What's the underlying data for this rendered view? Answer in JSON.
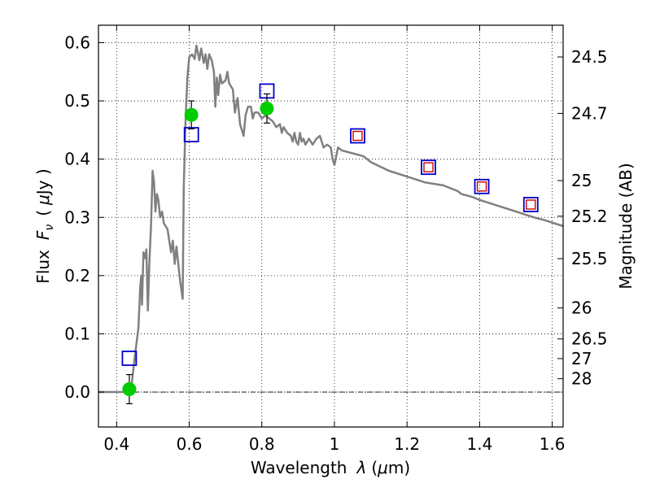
{
  "chart_data": {
    "type": "scatter",
    "xlabel_text": "Wavelength",
    "xlabel_symbol": "λ",
    "xlabel_unit_open": "(",
    "xlabel_unit_mu": "μ",
    "xlabel_unit_rest": "m)",
    "ylabel_text": "Flux",
    "ylabel_symbol": "F",
    "ylabel_symbol_sub": "ν",
    "ylabel_unit_open": "(",
    "ylabel_unit_mu": "μ",
    "ylabel_unit_rest": "Jy )",
    "right_ylabel": "Magnitude (AB)",
    "xlim": [
      0.35,
      1.63
    ],
    "ylim": [
      -0.06,
      0.63
    ],
    "x_ticks": [
      {
        "v": 0.4,
        "label": "0.4"
      },
      {
        "v": 0.6,
        "label": "0.6"
      },
      {
        "v": 0.8,
        "label": "0.8"
      },
      {
        "v": 1.0,
        "label": "1"
      },
      {
        "v": 1.2,
        "label": "1.2"
      },
      {
        "v": 1.4,
        "label": "1.4"
      },
      {
        "v": 1.6,
        "label": "1.6"
      }
    ],
    "y_ticks": [
      {
        "v": 0.0,
        "label": "0.0"
      },
      {
        "v": 0.1,
        "label": "0.1"
      },
      {
        "v": 0.2,
        "label": "0.2"
      },
      {
        "v": 0.3,
        "label": "0.3"
      },
      {
        "v": 0.4,
        "label": "0.4"
      },
      {
        "v": 0.5,
        "label": "0.5"
      },
      {
        "v": 0.6,
        "label": "0.6"
      }
    ],
    "right_ticks": [
      {
        "flux": 0.5755,
        "label": "24.5"
      },
      {
        "flux": 0.4786,
        "label": "24.7"
      },
      {
        "flux": 0.3631,
        "label": "25"
      },
      {
        "flux": 0.302,
        "label": "25.2"
      },
      {
        "flux": 0.2291,
        "label": "25.5"
      },
      {
        "flux": 0.1445,
        "label": "26"
      },
      {
        "flux": 0.0912,
        "label": "26.5"
      },
      {
        "flux": 0.0575,
        "label": "27"
      },
      {
        "flux": 0.0229,
        "label": "28"
      }
    ],
    "grid": true,
    "zero_line": true,
    "colors": {
      "model": "#808080",
      "observed": "#00cc00",
      "synthetic_outer": "#0000cc",
      "synthetic_inner": "#cc0000",
      "errorbar": "#000000"
    },
    "model_sed": [
      [
        0.35,
        0.0
      ],
      [
        0.4,
        0.0
      ],
      [
        0.42,
        0.0
      ],
      [
        0.43,
        0.0
      ],
      [
        0.44,
        0.005
      ],
      [
        0.45,
        0.06
      ],
      [
        0.46,
        0.11
      ],
      [
        0.465,
        0.18
      ],
      [
        0.468,
        0.2
      ],
      [
        0.47,
        0.15
      ],
      [
        0.474,
        0.24
      ],
      [
        0.478,
        0.23
      ],
      [
        0.482,
        0.245
      ],
      [
        0.486,
        0.14
      ],
      [
        0.49,
        0.22
      ],
      [
        0.495,
        0.29
      ],
      [
        0.499,
        0.38
      ],
      [
        0.503,
        0.36
      ],
      [
        0.507,
        0.31
      ],
      [
        0.511,
        0.34
      ],
      [
        0.515,
        0.33
      ],
      [
        0.52,
        0.3
      ],
      [
        0.525,
        0.31
      ],
      [
        0.53,
        0.29
      ],
      [
        0.54,
        0.28
      ],
      [
        0.55,
        0.24
      ],
      [
        0.555,
        0.26
      ],
      [
        0.56,
        0.22
      ],
      [
        0.565,
        0.25
      ],
      [
        0.57,
        0.22
      ],
      [
        0.575,
        0.19
      ],
      [
        0.582,
        0.16
      ],
      [
        0.585,
        0.35
      ],
      [
        0.59,
        0.47
      ],
      [
        0.595,
        0.54
      ],
      [
        0.6,
        0.575
      ],
      [
        0.608,
        0.58
      ],
      [
        0.615,
        0.572
      ],
      [
        0.62,
        0.595
      ],
      [
        0.628,
        0.57
      ],
      [
        0.633,
        0.59
      ],
      [
        0.64,
        0.565
      ],
      [
        0.645,
        0.58
      ],
      [
        0.65,
        0.555
      ],
      [
        0.655,
        0.58
      ],
      [
        0.662,
        0.57
      ],
      [
        0.668,
        0.55
      ],
      [
        0.672,
        0.49
      ],
      [
        0.676,
        0.54
      ],
      [
        0.68,
        0.51
      ],
      [
        0.685,
        0.545
      ],
      [
        0.69,
        0.53
      ],
      [
        0.7,
        0.535
      ],
      [
        0.705,
        0.55
      ],
      [
        0.71,
        0.53
      ],
      [
        0.72,
        0.52
      ],
      [
        0.726,
        0.48
      ],
      [
        0.733,
        0.505
      ],
      [
        0.74,
        0.46
      ],
      [
        0.745,
        0.45
      ],
      [
        0.75,
        0.44
      ],
      [
        0.755,
        0.475
      ],
      [
        0.762,
        0.49
      ],
      [
        0.77,
        0.49
      ],
      [
        0.775,
        0.47
      ],
      [
        0.78,
        0.48
      ],
      [
        0.79,
        0.48
      ],
      [
        0.8,
        0.47
      ],
      [
        0.81,
        0.475
      ],
      [
        0.82,
        0.47
      ],
      [
        0.83,
        0.465
      ],
      [
        0.84,
        0.455
      ],
      [
        0.85,
        0.46
      ],
      [
        0.855,
        0.445
      ],
      [
        0.86,
        0.455
      ],
      [
        0.87,
        0.445
      ],
      [
        0.88,
        0.44
      ],
      [
        0.885,
        0.43
      ],
      [
        0.89,
        0.445
      ],
      [
        0.895,
        0.43
      ],
      [
        0.9,
        0.425
      ],
      [
        0.905,
        0.445
      ],
      [
        0.91,
        0.43
      ],
      [
        0.915,
        0.435
      ],
      [
        0.92,
        0.425
      ],
      [
        0.93,
        0.435
      ],
      [
        0.94,
        0.425
      ],
      [
        0.95,
        0.435
      ],
      [
        0.96,
        0.44
      ],
      [
        0.97,
        0.42
      ],
      [
        0.98,
        0.425
      ],
      [
        0.99,
        0.42
      ],
      [
        0.995,
        0.4
      ],
      [
        1.0,
        0.39
      ],
      [
        1.01,
        0.42
      ],
      [
        1.02,
        0.415
      ],
      [
        1.05,
        0.41
      ],
      [
        1.08,
        0.405
      ],
      [
        1.1,
        0.395
      ],
      [
        1.15,
        0.38
      ],
      [
        1.2,
        0.37
      ],
      [
        1.25,
        0.36
      ],
      [
        1.3,
        0.355
      ],
      [
        1.34,
        0.345
      ],
      [
        1.35,
        0.34
      ],
      [
        1.38,
        0.335
      ],
      [
        1.4,
        0.33
      ],
      [
        1.45,
        0.32
      ],
      [
        1.5,
        0.31
      ],
      [
        1.55,
        0.3
      ],
      [
        1.58,
        0.295
      ],
      [
        1.63,
        0.285
      ]
    ],
    "observed_points": [
      {
        "x": 0.435,
        "y": 0.005,
        "yerr": 0.025
      },
      {
        "x": 0.606,
        "y": 0.476,
        "yerr": 0.024
      },
      {
        "x": 0.814,
        "y": 0.487,
        "yerr": 0.025
      }
    ],
    "synthetic_points": [
      {
        "x": 0.435,
        "y": 0.058,
        "inner": false
      },
      {
        "x": 0.606,
        "y": 0.442,
        "inner": false
      },
      {
        "x": 0.814,
        "y": 0.517,
        "inner": false
      },
      {
        "x": 1.064,
        "y": 0.44,
        "inner": true
      },
      {
        "x": 1.259,
        "y": 0.386,
        "inner": true
      },
      {
        "x": 1.406,
        "y": 0.353,
        "inner": true
      },
      {
        "x": 1.541,
        "y": 0.322,
        "inner": true
      }
    ]
  }
}
